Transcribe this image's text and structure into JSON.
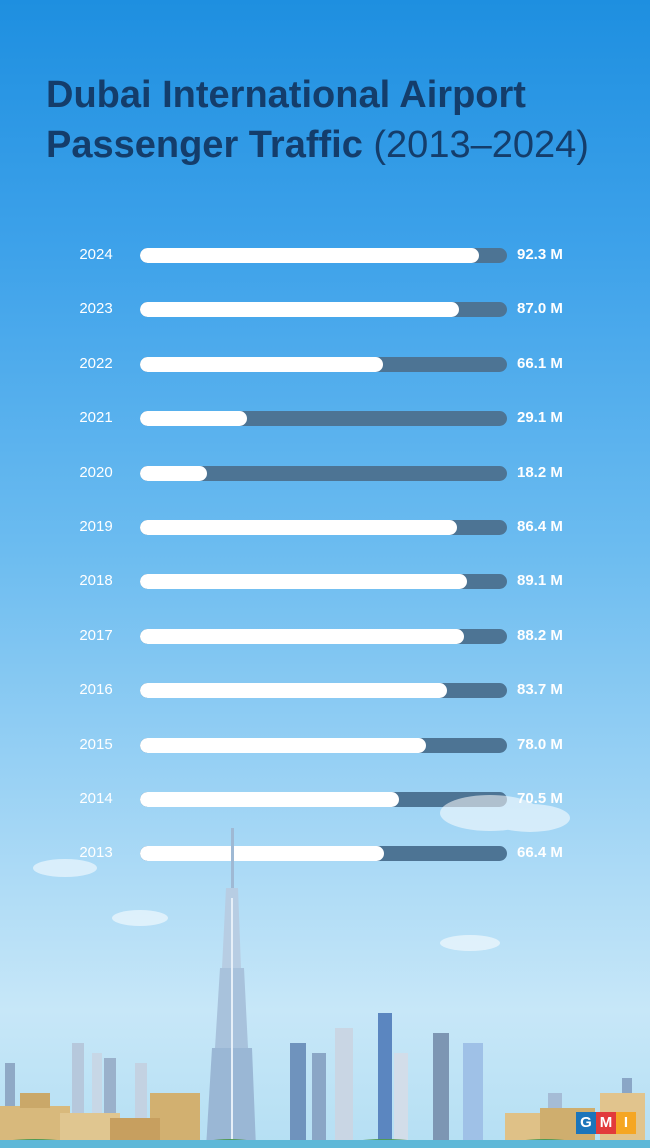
{
  "title": {
    "line1": "Dubai International Airport",
    "line2_bold": "Passenger Traffic",
    "line2_years": "(2013–2024)"
  },
  "colors": {
    "title": "#143d6b",
    "bar_fill": "#ffffff",
    "bar_track": "#4d7494",
    "logo_g": "#1b75bb",
    "logo_m": "#e23b3b",
    "logo_i": "#f5a623"
  },
  "logo": {
    "letters": [
      "G",
      "M",
      "I"
    ]
  },
  "chart_data": {
    "type": "bar",
    "orientation": "horizontal",
    "categories": [
      "2024",
      "2023",
      "2022",
      "2021",
      "2020",
      "2019",
      "2018",
      "2017",
      "2016",
      "2015",
      "2014",
      "2013"
    ],
    "values": [
      92.3,
      87.0,
      66.1,
      29.1,
      18.2,
      86.4,
      89.1,
      88.2,
      83.7,
      78.0,
      70.5,
      66.4
    ],
    "value_labels": [
      "92.3 M",
      "87.0 M",
      "66.1 M",
      "29.1 M",
      "18.2 M",
      "86.4 M",
      "89.1 M",
      "88.2 M",
      "83.7 M",
      "78.0 M",
      "70.5 M",
      "66.4 M"
    ],
    "xlim": [
      0,
      100
    ],
    "grid": false
  }
}
